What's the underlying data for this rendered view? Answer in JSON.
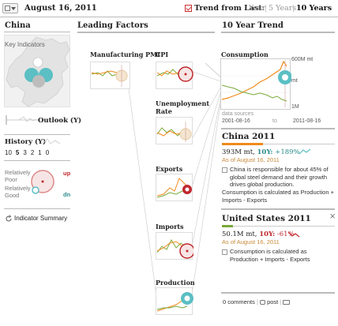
{
  "topbar": {
    "date": "August 16, 2011",
    "trend_label": "Trend from Last:",
    "options": [
      "Year",
      "5 Years",
      "10 Years"
    ],
    "active_option": "10 Years"
  },
  "left": {
    "title": "China",
    "key_indicators": "Key Indicators",
    "outlook_label": "Outlook (Y)",
    "history_label": "History (Y)",
    "history_numbers": [
      "10",
      "5",
      "3",
      "2",
      "1",
      "0"
    ],
    "relatively_poor": "Relatively Poor",
    "relatively_good": "Relatively Good",
    "up": "up",
    "dn": "dn",
    "summary": "Indicator Summary"
  },
  "leading": {
    "title": "Leading Factors",
    "manufacturing": "Manufacturing PMI",
    "cpi": "CPI",
    "unemployment": "Unemployment Rate",
    "exports": "Exports",
    "imports": "Imports",
    "production": "Production"
  },
  "trend": {
    "title": "10 Year Trend",
    "chart_title": "Consumption",
    "y_max": "600M mt",
    "y_mid": "mt",
    "y_min": "1M",
    "source": "data sources",
    "start": "2001-08-16",
    "to": "to",
    "end": "2011-08-16"
  },
  "china": {
    "title": "China 2011",
    "value": "393M mt,",
    "change_label": "10Y:",
    "change": "+189%",
    "asof": "As of August 16, 2011",
    "description": "China is responsible for about 45% of global steel demand and their growth drives global production.",
    "note": "Consumption is calculated as Production + Imports - Exports"
  },
  "us": {
    "title": "United States 2011",
    "value": "50.1M mt,",
    "change_label": "10Y:",
    "change": "-61%",
    "asof": "As of August 16, 2011",
    "note": "Consumption is calculated as Production + Imports - Exports"
  },
  "footer": {
    "comments": "0 comments",
    "post": "post"
  },
  "colors": {
    "orange": "#f08a1c",
    "green": "#7aa83a",
    "red": "#c0272d",
    "teal": "#5bbfc4"
  }
}
